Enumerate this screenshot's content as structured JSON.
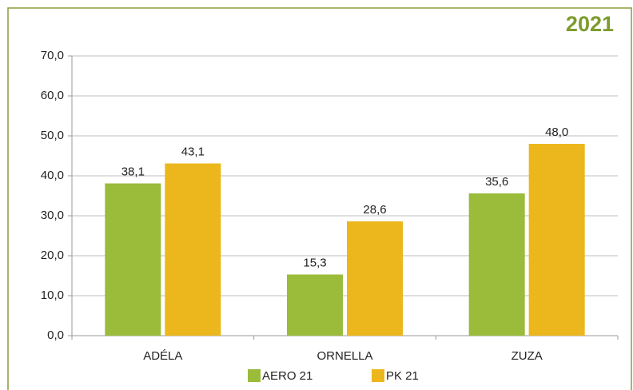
{
  "chart_data": {
    "type": "bar",
    "title": "2021",
    "categories": [
      "ADÉLA",
      "ORNELLA",
      "ZUZA"
    ],
    "series": [
      {
        "name": "AERO 21",
        "color": "#9bbb3b",
        "values": [
          38.1,
          15.3,
          35.6
        ],
        "value_labels": [
          "38,1",
          "15,3",
          "35,6"
        ]
      },
      {
        "name": "PK 21",
        "color": "#ebb71c",
        "values": [
          43.1,
          28.6,
          48.0
        ],
        "value_labels": [
          "43,1",
          "28,6",
          "48,0"
        ]
      }
    ],
    "ylim": [
      0,
      70
    ],
    "yticks": [
      {
        "value": 0,
        "label": "0,0"
      },
      {
        "value": 10,
        "label": "10,0"
      },
      {
        "value": 20,
        "label": "20,0"
      },
      {
        "value": 30,
        "label": "30,0"
      },
      {
        "value": 40,
        "label": "40,0"
      },
      {
        "value": 50,
        "label": "50,0"
      },
      {
        "value": 60,
        "label": "60,0"
      },
      {
        "value": 70,
        "label": "70,0"
      }
    ],
    "grid": true,
    "legend": "bottom"
  }
}
